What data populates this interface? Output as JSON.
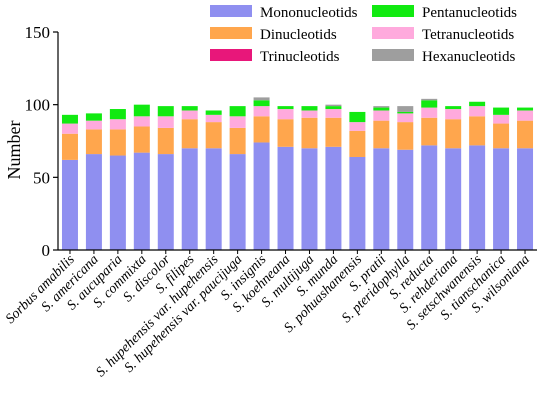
{
  "chart_data": {
    "type": "bar",
    "stacked": true,
    "title": "",
    "xlabel": "",
    "ylabel": "Number",
    "ylim": [
      0,
      150
    ],
    "yticks": [
      0,
      50,
      100,
      150
    ],
    "grid": false,
    "legend_placement": "top-right",
    "categories": [
      "Sorbus amabilis",
      "S. americana",
      "S. aucuparia",
      "S. commixta",
      "S. discolor",
      "S. filipes",
      "S. hupehensis var. hupehensis",
      "S. hupehensis var. paucijuga",
      "S. insignis",
      "S. koehneana",
      "S. multijuga",
      "S. munda",
      "S. pohuashanensis",
      "S. pratii",
      "S. pteridophylla",
      "S. reducta",
      "S. rehderiana",
      "S. setschwanensis",
      "S. tianschanica",
      "S. wilsoniana"
    ],
    "series": [
      {
        "name": "Mononucleotids",
        "color": "#8f8ff0",
        "values": [
          62,
          66,
          65,
          67,
          66,
          70,
          70,
          66,
          74,
          71,
          70,
          71,
          64,
          70,
          69,
          72,
          70,
          72,
          70,
          70
        ]
      },
      {
        "name": "Dinucleotids",
        "color": "#ffa64d",
        "values": [
          18,
          17,
          18,
          18,
          18,
          20,
          18,
          18,
          18,
          19,
          21,
          20,
          18,
          19,
          19,
          19,
          20,
          20,
          17,
          19
        ]
      },
      {
        "name": "Trinucleotids",
        "color": "#e8177a",
        "values": [
          0,
          0,
          0,
          0,
          0,
          0,
          0,
          0,
          0,
          0,
          0,
          0,
          0,
          0,
          0,
          0,
          0,
          0,
          0,
          0
        ]
      },
      {
        "name": "Tetranucleotids",
        "color": "#ffaadd",
        "values": [
          7,
          6,
          7,
          7,
          8,
          6,
          5,
          8,
          7,
          7,
          5,
          6,
          6,
          7,
          6,
          7,
          7,
          7,
          6,
          7
        ]
      },
      {
        "name": "Pentanucleotids",
        "color": "#11ea11",
        "values": [
          6,
          5,
          7,
          8,
          7,
          3,
          3,
          7,
          4,
          2,
          3,
          2,
          7,
          2,
          1,
          5,
          2,
          3,
          5,
          2
        ]
      },
      {
        "name": "Hexanucleotids",
        "color": "#9e9e9e",
        "values": [
          0,
          0,
          0,
          0,
          0,
          0,
          0,
          0,
          2,
          0,
          0,
          1,
          0,
          1,
          4,
          1,
          0,
          0,
          0,
          0
        ]
      }
    ]
  },
  "legend_order": [
    0,
    4,
    1,
    3,
    2,
    5
  ]
}
